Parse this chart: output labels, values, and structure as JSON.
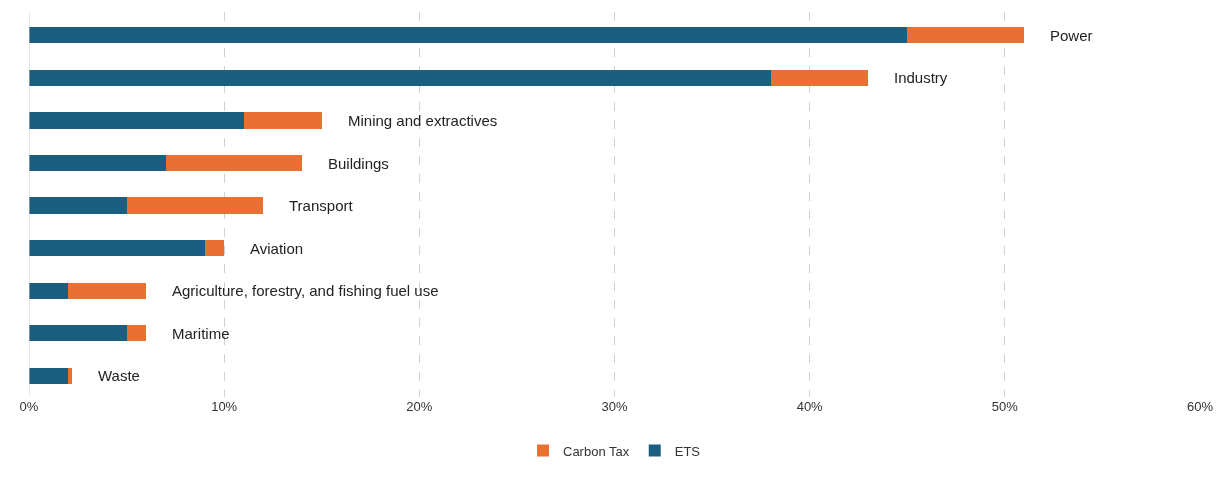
{
  "chart_data": {
    "type": "bar",
    "orientation": "horizontal",
    "stacked": true,
    "categories": [
      "Power",
      "Industry",
      "Mining and extractives",
      "Buildings",
      "Transport",
      "Aviation",
      "Agriculture, forestry, and fishing fuel use",
      "Maritime",
      "Waste"
    ],
    "series": [
      {
        "name": "ETS",
        "color": "#1a5f80",
        "values": [
          45,
          38,
          11,
          7,
          5,
          9,
          2,
          5,
          2
        ]
      },
      {
        "name": "Carbon Tax",
        "color": "#e87033",
        "values": [
          6,
          5,
          4,
          7,
          7,
          1,
          4,
          1,
          0.2
        ]
      }
    ],
    "xlim": [
      0,
      60
    ],
    "xticks": [
      {
        "value": 0,
        "label": "0%"
      },
      {
        "value": 10,
        "label": "10%"
      },
      {
        "value": 20,
        "label": "20%"
      },
      {
        "value": 30,
        "label": "30%"
      },
      {
        "value": 40,
        "label": "40%"
      },
      {
        "value": 50,
        "label": "50%"
      },
      {
        "value": 60,
        "label": "60%"
      }
    ],
    "grid": "x",
    "legend": "bottom"
  }
}
